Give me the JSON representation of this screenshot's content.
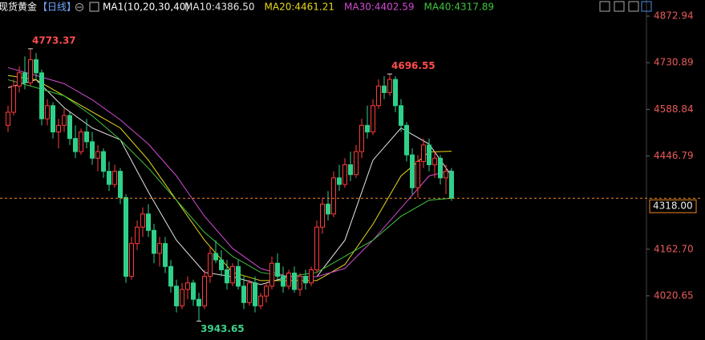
{
  "chart_data": {
    "type": "candlestick",
    "title": "现货黄金",
    "period": "【日线】",
    "indicator": "MA1(10,20,30,40)",
    "ylim": [
      3886,
      4922
    ],
    "yticks": [
      4872.94,
      4730.89,
      4588.84,
      4446.79,
      {
        "value": 4162.7,
        "label": "4162.70"
      },
      4020.65
    ],
    "up_color": "#ff3b3b",
    "down_color": "#2fd18a",
    "current_price": {
      "value": 4318,
      "label": "4318.00"
    },
    "high_label": 4773.37,
    "low_label": 3943.65,
    "peak_label": 4696.55,
    "candles": [
      [
        4540,
        4600,
        4520,
        4580
      ],
      [
        4580,
        4680,
        4570,
        4660
      ],
      [
        4660,
        4720,
        4640,
        4700
      ],
      [
        4700,
        4750,
        4650,
        4670
      ],
      [
        4670,
        4773.37,
        4660,
        4740
      ],
      [
        4740,
        4760,
        4680,
        4700
      ],
      [
        4700,
        4710,
        4540,
        4560
      ],
      [
        4560,
        4620,
        4540,
        4600
      ],
      [
        4600,
        4610,
        4500,
        4520
      ],
      [
        4520,
        4560,
        4470,
        4540
      ],
      [
        4540,
        4590,
        4520,
        4570
      ],
      [
        4570,
        4580,
        4480,
        4500
      ],
      [
        4500,
        4540,
        4440,
        4460
      ],
      [
        4460,
        4530,
        4450,
        4520
      ],
      [
        4520,
        4560,
        4470,
        4490
      ],
      [
        4490,
        4520,
        4420,
        4440
      ],
      [
        4440,
        4480,
        4400,
        4460
      ],
      [
        4460,
        4470,
        4380,
        4400
      ],
      [
        4400,
        4430,
        4340,
        4360
      ],
      [
        4360,
        4420,
        4350,
        4400
      ],
      [
        4400,
        4410,
        4300,
        4320
      ],
      [
        4320,
        4330,
        4060,
        4080
      ],
      [
        4080,
        4200,
        4070,
        4180
      ],
      [
        4180,
        4250,
        4160,
        4230
      ],
      [
        4230,
        4290,
        4200,
        4270
      ],
      [
        4270,
        4300,
        4200,
        4220
      ],
      [
        4220,
        4240,
        4120,
        4150
      ],
      [
        4150,
        4200,
        4110,
        4180
      ],
      [
        4180,
        4200,
        4090,
        4110
      ],
      [
        4110,
        4130,
        4030,
        4050
      ],
      [
        4050,
        4070,
        3970,
        3990
      ],
      [
        3990,
        4060,
        3980,
        4040
      ],
      [
        4040,
        4080,
        4010,
        4060
      ],
      [
        4060,
        4070,
        3990,
        4010
      ],
      [
        4010,
        4030,
        3943.65,
        3990
      ],
      [
        3990,
        4100,
        3980,
        4080
      ],
      [
        4080,
        4170,
        4060,
        4150
      ],
      [
        4150,
        4190,
        4120,
        4130
      ],
      [
        4130,
        4160,
        4080,
        4100
      ],
      [
        4100,
        4130,
        4040,
        4060
      ],
      [
        4060,
        4120,
        4050,
        4110
      ],
      [
        4110,
        4130,
        4040,
        4050
      ],
      [
        4050,
        4080,
        3980,
        4000
      ],
      [
        4000,
        4070,
        3990,
        4060
      ],
      [
        4060,
        4080,
        3970,
        3990
      ],
      [
        3990,
        4030,
        3980,
        4020
      ],
      [
        4020,
        4060,
        4000,
        4050
      ],
      [
        4050,
        4140,
        4040,
        4120
      ],
      [
        4120,
        4150,
        4070,
        4080
      ],
      [
        4080,
        4110,
        4030,
        4050
      ],
      [
        4050,
        4100,
        4040,
        4090
      ],
      [
        4090,
        4110,
        4030,
        4040
      ],
      [
        4040,
        4090,
        4020,
        4080
      ],
      [
        4080,
        4100,
        4040,
        4060
      ],
      [
        4060,
        4110,
        4050,
        4100
      ],
      [
        4100,
        4250,
        4090,
        4230
      ],
      [
        4230,
        4320,
        4210,
        4300
      ],
      [
        4300,
        4340,
        4250,
        4270
      ],
      [
        4270,
        4400,
        4260,
        4380
      ],
      [
        4380,
        4420,
        4340,
        4360
      ],
      [
        4360,
        4440,
        4350,
        4420
      ],
      [
        4420,
        4460,
        4370,
        4390
      ],
      [
        4390,
        4480,
        4380,
        4460
      ],
      [
        4460,
        4560,
        4440,
        4540
      ],
      [
        4540,
        4600,
        4500,
        4520
      ],
      [
        4520,
        4620,
        4510,
        4600
      ],
      [
        4600,
        4680,
        4590,
        4660
      ],
      [
        4660,
        4690,
        4620,
        4640
      ],
      [
        4640,
        4696.55,
        4630,
        4680
      ],
      [
        4680,
        4690,
        4580,
        4600
      ],
      [
        4600,
        4620,
        4520,
        4540
      ],
      [
        4540,
        4550,
        4430,
        4450
      ],
      [
        4450,
        4470,
        4330,
        4350
      ],
      [
        4350,
        4450,
        4320,
        4430
      ],
      [
        4430,
        4500,
        4410,
        4480
      ],
      [
        4480,
        4500,
        4400,
        4420
      ],
      [
        4420,
        4460,
        4380,
        4440
      ],
      [
        4440,
        4450,
        4360,
        4380
      ],
      [
        4380,
        4420,
        4330,
        4400
      ],
      [
        4400,
        4410,
        4310,
        4318
      ]
    ],
    "ma_x": [
      0,
      5,
      10,
      15,
      20,
      25,
      30,
      35,
      40,
      45,
      50,
      55,
      60,
      65,
      70,
      75,
      79
    ],
    "ma_series": [
      {
        "label": "MA10:4386.50",
        "value": 4386.5,
        "color": "#e6e6e6",
        "values": [
          4655,
          4679,
          4594,
          4532,
          4496,
          4337,
          4190,
          4092,
          4079,
          4055,
          4079,
          4079,
          4190,
          4434,
          4532,
          4483,
          4386.5
        ]
      },
      {
        "label": "MA20:4461.21",
        "value": 4461.21,
        "color": "#e8d81c",
        "values": [
          4692,
          4679,
          4630,
          4581,
          4532,
          4434,
          4312,
          4190,
          4092,
          4067,
          4067,
          4067,
          4116,
          4239,
          4386,
          4459,
          4461.21
        ]
      },
      {
        "label": "MA30:4402.59",
        "value": 4402.59,
        "color": "#d24cd2",
        "values": [
          4716,
          4692,
          4667,
          4618,
          4557,
          4483,
          4386,
          4263,
          4165,
          4104,
          4079,
          4079,
          4104,
          4190,
          4288,
          4386,
          4402.59
        ]
      },
      {
        "label": "MA40:4317.89",
        "value": 4317.89,
        "color": "#3fc43f",
        "values": [
          4679,
          4655,
          4630,
          4569,
          4496,
          4410,
          4312,
          4214,
          4141,
          4092,
          4079,
          4092,
          4141,
          4190,
          4263,
          4312,
          4317.89
        ]
      }
    ]
  }
}
